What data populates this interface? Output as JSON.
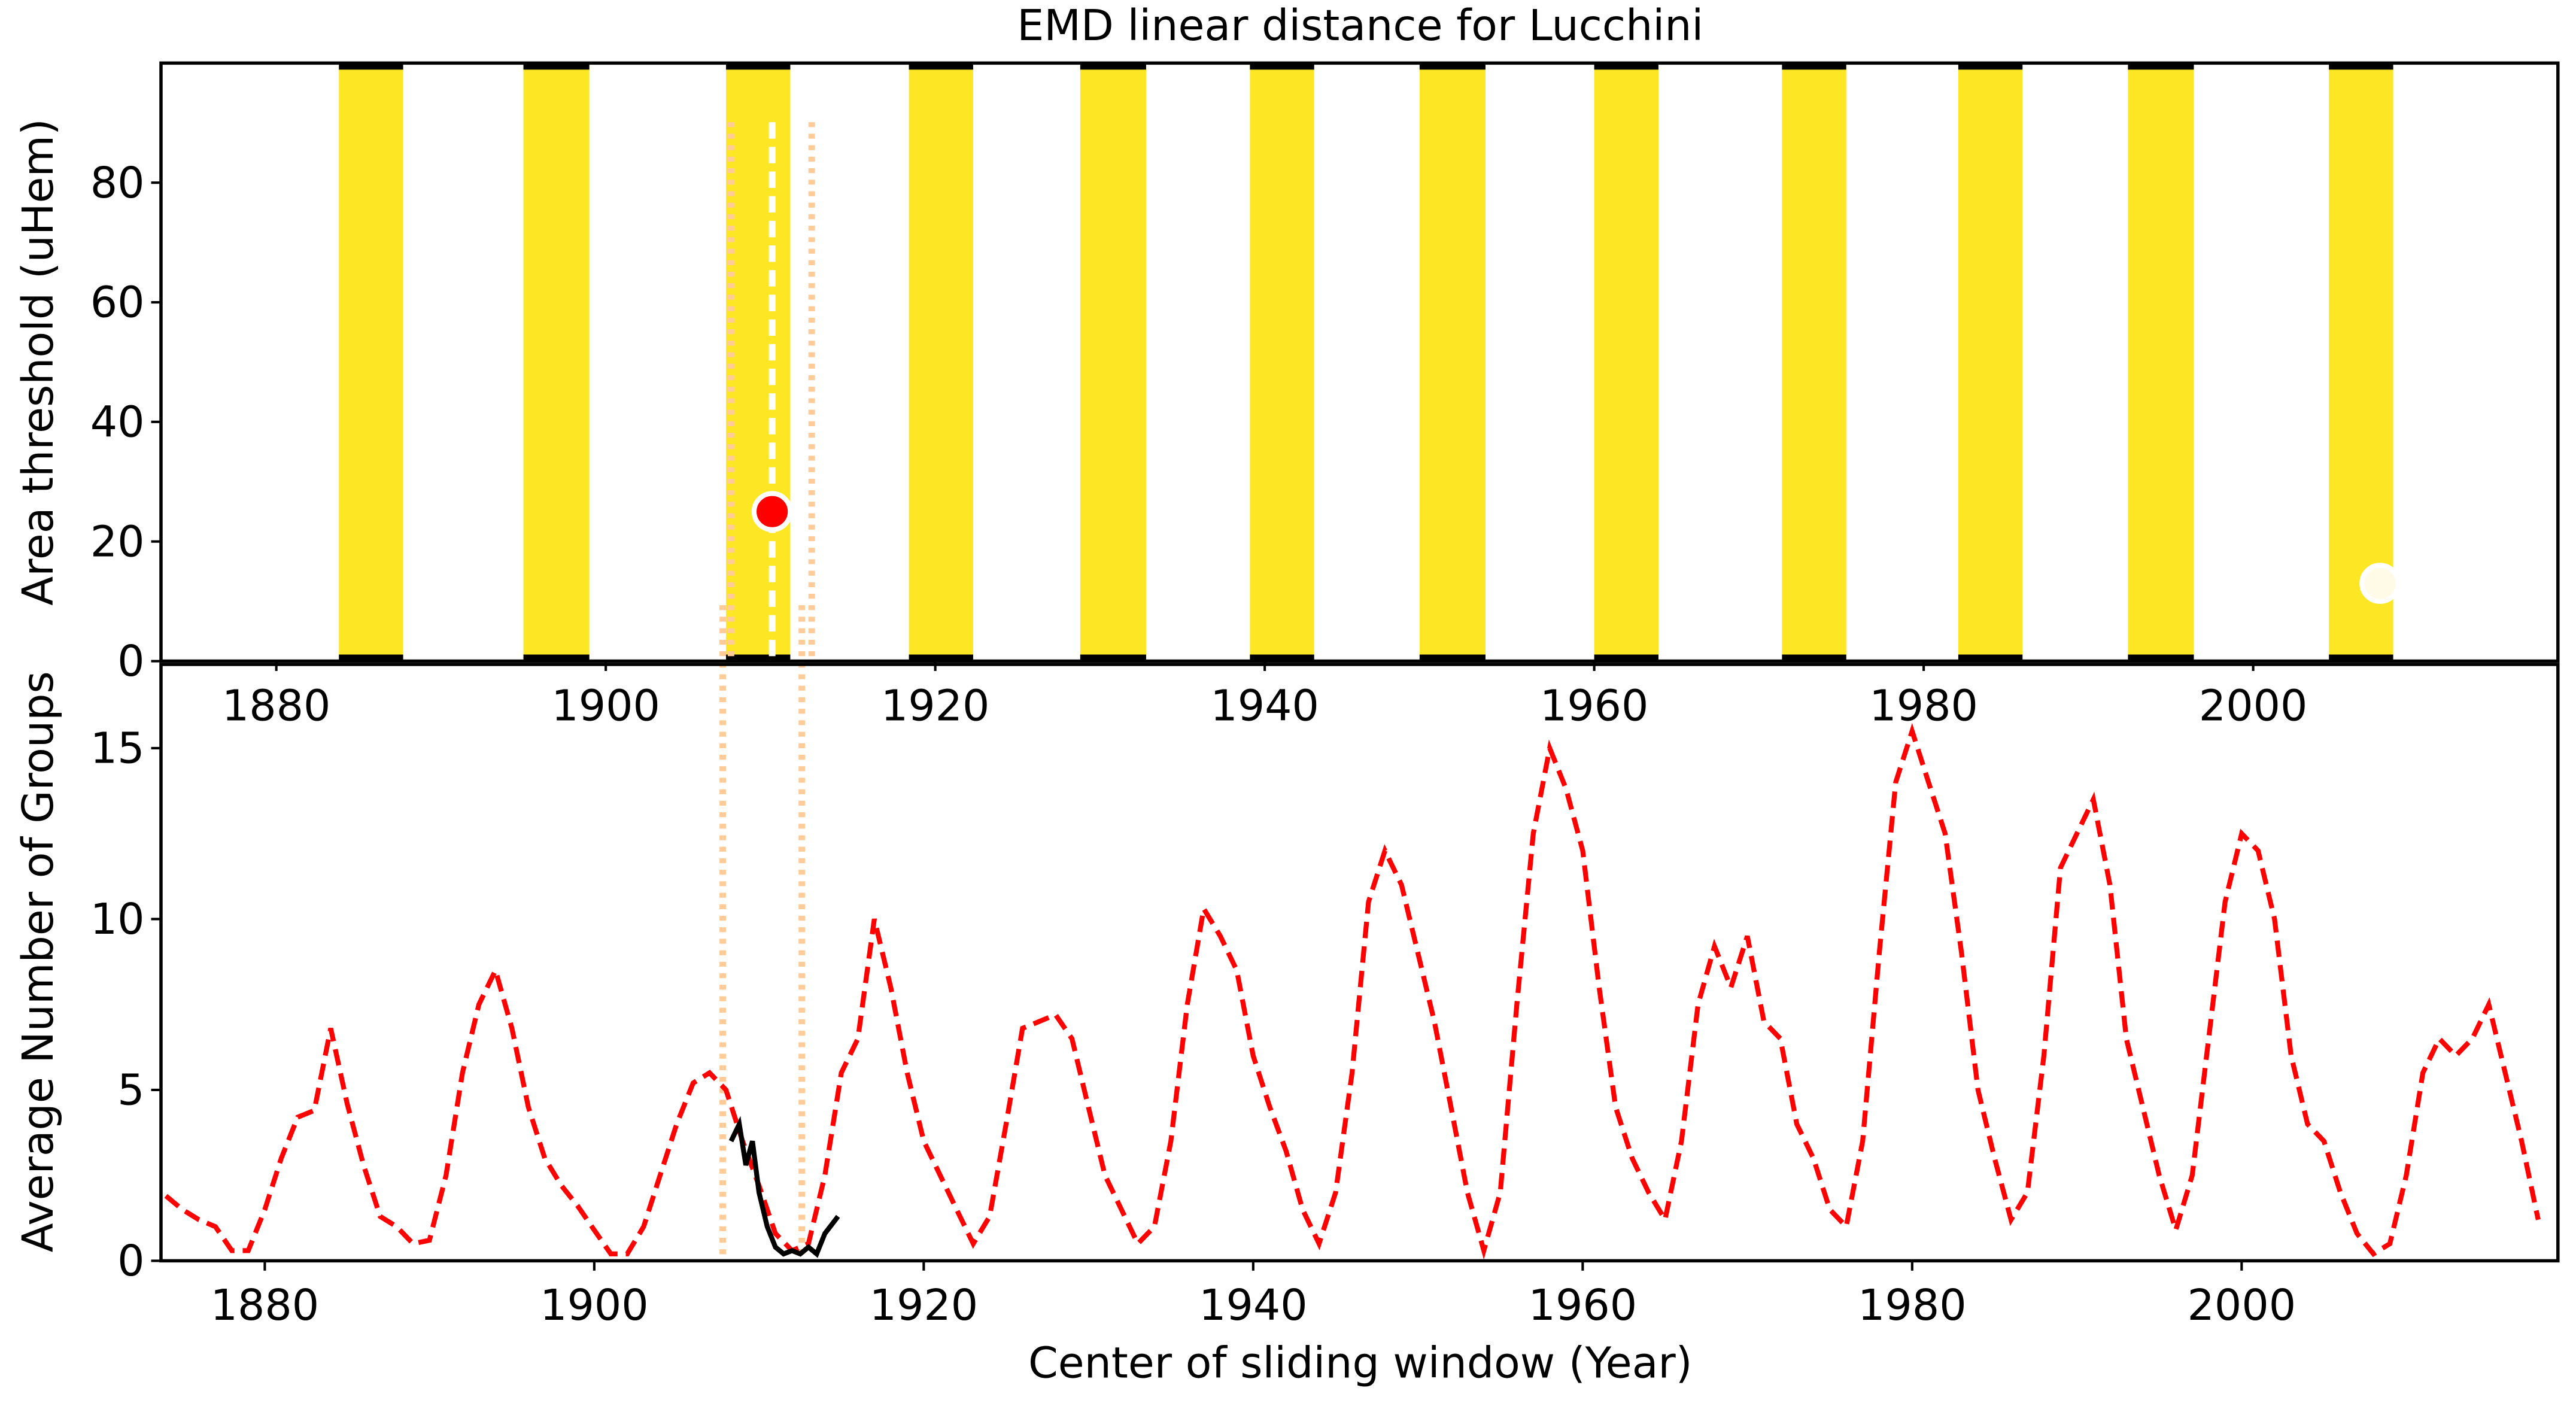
{
  "chart_data": [
    {
      "type": "band",
      "title": "EMD linear distance for Lucchini",
      "y_label": "Area threshold (uHem)",
      "xlim": [
        1873,
        2018.5
      ],
      "ylim": [
        0,
        100
      ],
      "xticks": [
        1880,
        1900,
        1920,
        1940,
        1960,
        1980,
        2000
      ],
      "yticks": [
        0,
        20,
        40,
        60,
        80
      ],
      "color": "#fde725",
      "bands": [
        [
          1883.8,
          1887.7
        ],
        [
          1895.0,
          1899.0
        ],
        [
          1907.3,
          1911.2
        ],
        [
          1918.4,
          1922.3
        ],
        [
          1928.8,
          1932.8
        ],
        [
          1939.1,
          1943.0
        ],
        [
          1949.4,
          1953.4
        ],
        [
          1960.0,
          1963.9
        ],
        [
          1971.4,
          1975.3
        ],
        [
          1982.1,
          1986.0
        ],
        [
          1992.4,
          1996.4
        ],
        [
          2004.6,
          2008.5
        ]
      ],
      "points": [
        {
          "x": 1910.1,
          "y": 25,
          "color": "#ff0000"
        },
        {
          "x": 2007.7,
          "y": 13,
          "color": "#fffbe6"
        }
      ],
      "vlines": [
        {
          "x": 1910.1,
          "color": "#ffffff",
          "style": "dashed"
        },
        {
          "x": 1907.6,
          "color": "#ffcc99",
          "style": "dotted"
        },
        {
          "x": 1912.5,
          "color": "#ffcc99",
          "style": "dotted"
        }
      ]
    },
    {
      "type": "line",
      "x_label": "Center of sliding window (Year)",
      "y_label": "Average Number of Groups",
      "xlim": [
        1873.7,
        2019.2
      ],
      "ylim": [
        0,
        17.45
      ],
      "xticks": [
        1880,
        1900,
        1920,
        1940,
        1960,
        1980,
        2000
      ],
      "yticks": [
        0,
        5,
        10,
        15
      ],
      "vlines": [
        {
          "x": 1907.8,
          "color": "#ffcc99",
          "style": "dotted"
        },
        {
          "x": 1912.6,
          "color": "#ffcc99",
          "style": "dotted"
        }
      ],
      "series": [
        {
          "color": "#ff0000",
          "style": "dashed",
          "x": [
            1874,
            1875,
            1876,
            1877,
            1878,
            1879,
            1880,
            1881,
            1882,
            1883,
            1884,
            1885,
            1886,
            1887,
            1888,
            1889,
            1890,
            1891,
            1892,
            1893,
            1894,
            1895,
            1896,
            1897,
            1898,
            1899,
            1900,
            1901,
            1902,
            1903,
            1904,
            1905,
            1906,
            1907,
            1908,
            1909,
            1910,
            1911,
            1912,
            1913,
            1914,
            1915,
            1916,
            1917,
            1918,
            1919,
            1920,
            1921,
            1922,
            1923,
            1924,
            1925,
            1926,
            1927,
            1928,
            1929,
            1930,
            1931,
            1932,
            1933,
            1934,
            1935,
            1936,
            1937,
            1938,
            1939,
            1940,
            1941,
            1942,
            1943,
            1944,
            1945,
            1946,
            1947,
            1948,
            1949,
            1950,
            1951,
            1952,
            1953,
            1954,
            1955,
            1956,
            1957,
            1958,
            1959,
            1960,
            1961,
            1962,
            1963,
            1964,
            1965,
            1966,
            1967,
            1968,
            1969,
            1970,
            1971,
            1972,
            1973,
            1974,
            1975,
            1976,
            1977,
            1978,
            1979,
            1980,
            1981,
            1982,
            1983,
            1984,
            1985,
            1986,
            1987,
            1988,
            1989,
            1990,
            1991,
            1992,
            1993,
            1994,
            1995,
            1996,
            1997,
            1998,
            1999,
            2000,
            2001,
            2002,
            2003,
            2004,
            2005,
            2006,
            2007,
            2008,
            2009,
            2010,
            2011,
            2012,
            2013,
            2014,
            2015,
            2016,
            2017,
            2018
          ],
          "values": [
            1.9,
            1.5,
            1.2,
            1.0,
            0.3,
            0.3,
            1.5,
            3.0,
            4.2,
            4.4,
            6.8,
            4.6,
            2.8,
            1.3,
            1.0,
            0.5,
            0.6,
            2.5,
            5.5,
            7.5,
            8.5,
            6.8,
            4.5,
            3.0,
            2.2,
            1.6,
            0.9,
            0.2,
            0.2,
            1.0,
            2.5,
            4.0,
            5.2,
            5.5,
            5.0,
            3.5,
            2.2,
            0.8,
            0.3,
            0.5,
            2.5,
            5.5,
            6.5,
            10.0,
            8.0,
            5.5,
            3.5,
            2.5,
            1.5,
            0.5,
            1.3,
            4.0,
            6.8,
            7.0,
            7.2,
            6.5,
            4.5,
            2.5,
            1.5,
            0.5,
            1.0,
            3.5,
            7.5,
            10.3,
            9.5,
            8.5,
            6.0,
            4.5,
            3.2,
            1.5,
            0.5,
            2.0,
            5.5,
            10.5,
            12.0,
            11.0,
            9.0,
            7.0,
            4.5,
            2.0,
            0.3,
            2.0,
            7.5,
            12.5,
            15.0,
            13.8,
            12.0,
            8.0,
            4.5,
            3.0,
            2.0,
            1.2,
            3.5,
            7.5,
            9.2,
            8.0,
            9.5,
            7.0,
            6.5,
            4.0,
            3.0,
            1.5,
            1.0,
            3.5,
            9.0,
            14.0,
            15.5,
            14.0,
            12.5,
            9.0,
            5.0,
            3.0,
            1.2,
            2.0,
            6.0,
            11.5,
            12.5,
            13.5,
            11.0,
            6.5,
            4.5,
            2.5,
            0.9,
            2.5,
            6.5,
            10.5,
            12.5,
            12.0,
            10.0,
            6.0,
            4.0,
            3.5,
            2.0,
            0.8,
            0.2,
            0.5,
            2.5,
            5.5,
            6.5,
            6.0,
            6.5,
            7.5,
            5.5,
            3.5,
            1.2
          ]
        },
        {
          "color": "#000000",
          "style": "solid",
          "x": [
            1908.3,
            1908.8,
            1909.2,
            1909.6,
            1910.0,
            1910.5,
            1911.0,
            1911.5,
            1912.0,
            1912.5,
            1913.0,
            1913.5,
            1914.0,
            1914.8
          ],
          "values": [
            3.5,
            4.0,
            2.8,
            3.5,
            2.0,
            1.0,
            0.4,
            0.2,
            0.3,
            0.2,
            0.4,
            0.2,
            0.8,
            1.3
          ]
        }
      ]
    }
  ]
}
